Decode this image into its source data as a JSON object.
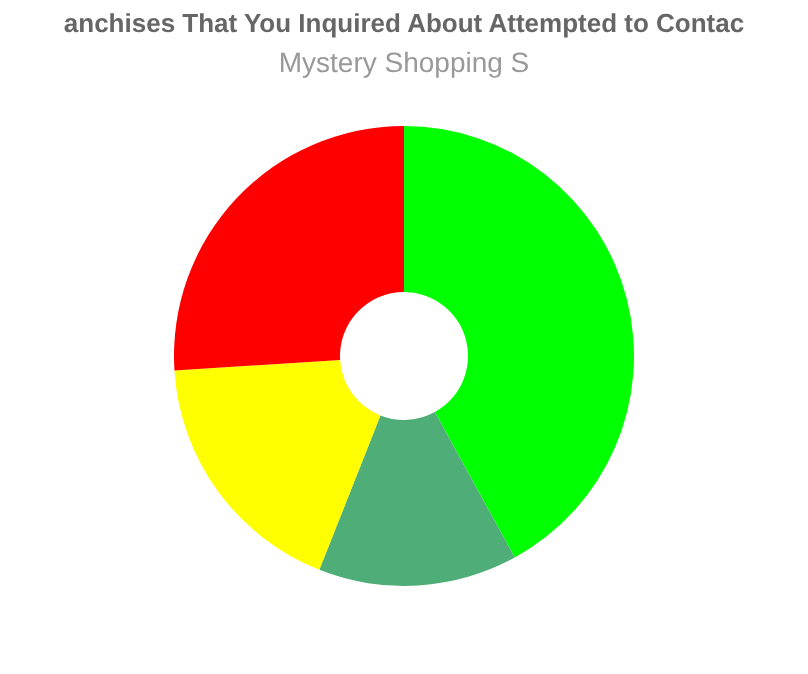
{
  "chart_data": {
    "type": "donut",
    "title": "anchises That You Inquired About Attempted to Contac",
    "subtitle": "Mystery Shopping S",
    "categories": [
      null,
      null,
      null,
      null
    ],
    "values": [
      42,
      14,
      18,
      26
    ],
    "colors": [
      "#00ff00",
      "#4fad78",
      "#ffff00",
      "#ff0000"
    ],
    "legend": false
  }
}
